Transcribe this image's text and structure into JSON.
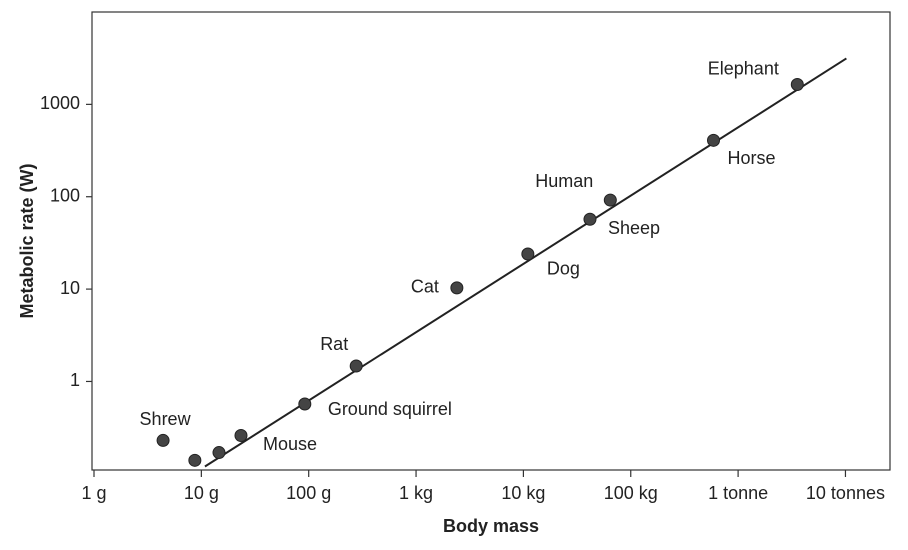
{
  "chart_data": {
    "type": "scatter",
    "x_label": "Body mass",
    "y_label": "Metabolic rate (W)",
    "log_x": true,
    "log_y": true,
    "color": "#444444",
    "line_color": "#222222",
    "xlim": [
      1,
      26000000
    ],
    "ylim": [
      0.11,
      10000
    ],
    "xticks": [
      {
        "value": 1,
        "label": "1 g"
      },
      {
        "value": 10,
        "label": "10 g"
      },
      {
        "value": 100,
        "label": "100 g"
      },
      {
        "value": 1000,
        "label": "1 kg"
      },
      {
        "value": 10000,
        "label": "10 kg"
      },
      {
        "value": 100000,
        "label": "100 kg"
      },
      {
        "value": 1000000,
        "label": "1 tonne"
      },
      {
        "value": 10000000,
        "label": "10 tonnes"
      }
    ],
    "yticks": [
      1,
      10,
      100,
      1000
    ],
    "labels": [
      "Shrew",
      null,
      null,
      "Mouse",
      "Ground squirrel",
      "Rat",
      "Cat",
      "Dog",
      "Sheep",
      "Human",
      "Horse",
      "Elephant"
    ],
    "x": [
      4.4,
      8.7,
      14.6,
      23.4,
      92,
      277,
      2400,
      11000,
      41700,
      64500,
      590000,
      3560000
    ],
    "y": [
      0.23,
      0.14,
      0.17,
      0.26,
      0.57,
      1.47,
      10.3,
      24,
      57,
      92,
      408,
      1640
    ],
    "fit_line": {
      "x": [
        10.8,
        10200000
      ],
      "y": [
        0.12,
        3140
      ]
    }
  }
}
